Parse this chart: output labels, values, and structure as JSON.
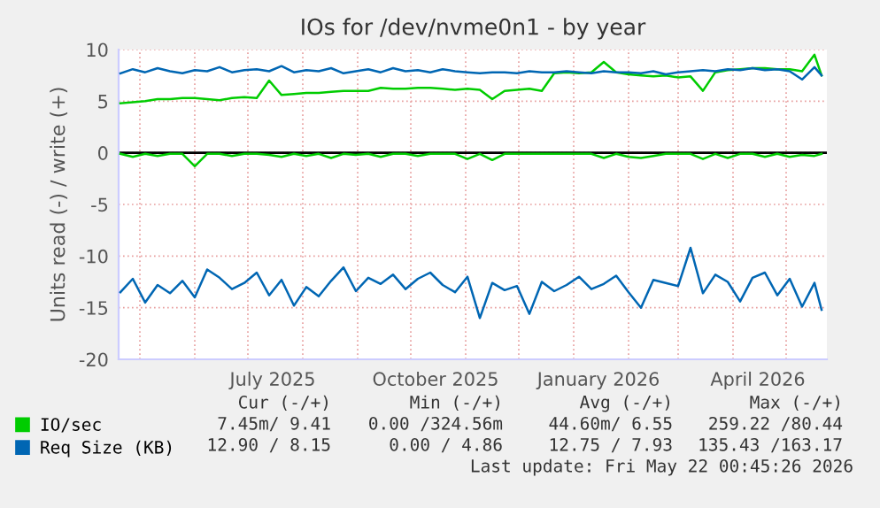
{
  "chart_data": {
    "type": "line",
    "title": "IOs for /dev/nvme0n1 - by year",
    "ylabel": "Units read (-) / write (+)",
    "x": [
      "2025-04-20",
      "2025-04-27",
      "2025-05-04",
      "2025-05-11",
      "2025-05-18",
      "2025-05-25",
      "2025-06-01",
      "2025-06-08",
      "2025-06-15",
      "2025-06-22",
      "2025-06-29",
      "2025-07-06",
      "2025-07-13",
      "2025-07-20",
      "2025-07-27",
      "2025-08-03",
      "2025-08-10",
      "2025-08-17",
      "2025-08-24",
      "2025-08-31",
      "2025-09-07",
      "2025-09-14",
      "2025-09-21",
      "2025-09-28",
      "2025-10-05",
      "2025-10-12",
      "2025-10-19",
      "2025-10-26",
      "2025-11-02",
      "2025-11-09",
      "2025-11-16",
      "2025-11-23",
      "2025-11-30",
      "2025-12-07",
      "2025-12-14",
      "2025-12-21",
      "2025-12-28",
      "2026-01-04",
      "2026-01-11",
      "2026-01-18",
      "2026-01-25",
      "2026-02-01",
      "2026-02-08",
      "2026-02-15",
      "2026-02-22",
      "2026-03-01",
      "2026-03-08",
      "2026-03-15",
      "2026-03-22",
      "2026-03-29",
      "2026-04-05",
      "2026-04-12",
      "2026-04-19",
      "2026-04-26",
      "2026-05-03",
      "2026-05-10",
      "2026-05-17",
      "2026-05-21"
    ],
    "series": [
      {
        "name": "IO/sec",
        "color": "#00cc00",
        "values": [
          4.8,
          4.9,
          5.0,
          5.2,
          5.2,
          5.3,
          5.3,
          5.2,
          5.1,
          5.3,
          5.4,
          5.3,
          7.0,
          5.6,
          5.7,
          5.8,
          5.8,
          5.9,
          6.0,
          6.0,
          6.0,
          6.3,
          6.2,
          6.2,
          6.3,
          6.3,
          6.2,
          6.1,
          6.2,
          6.1,
          5.2,
          6.0,
          6.1,
          6.2,
          6.0,
          7.7,
          7.8,
          7.7,
          7.8,
          8.8,
          7.8,
          7.6,
          7.5,
          7.4,
          7.5,
          7.3,
          7.4,
          6.0,
          7.8,
          8.0,
          8.1,
          8.2,
          8.2,
          8.1,
          8.1,
          7.9,
          9.5,
          7.5
        ]
      },
      {
        "color": "#00cc00",
        "values": [
          -0.1,
          -0.4,
          -0.1,
          -0.3,
          -0.1,
          -0.1,
          -1.3,
          -0.1,
          -0.1,
          -0.3,
          -0.1,
          -0.1,
          -0.2,
          -0.4,
          -0.1,
          -0.3,
          -0.1,
          -0.5,
          -0.1,
          -0.2,
          -0.1,
          -0.4,
          -0.1,
          -0.1,
          -0.3,
          -0.1,
          -0.1,
          -0.1,
          -0.6,
          -0.1,
          -0.7,
          -0.1,
          -0.1,
          -0.1,
          -0.1,
          -0.1,
          -0.1,
          -0.1,
          -0.1,
          -0.5,
          -0.1,
          -0.4,
          -0.5,
          -0.3,
          -0.1,
          -0.1,
          -0.1,
          -0.6,
          -0.1,
          -0.5,
          -0.1,
          -0.1,
          -0.4,
          -0.1,
          -0.4,
          -0.2,
          -0.3,
          -0.1
        ]
      },
      {
        "name": "Req Size (KB)",
        "color": "#0066b3",
        "values": [
          7.7,
          8.1,
          7.8,
          8.2,
          7.9,
          7.7,
          8.0,
          7.9,
          8.3,
          7.8,
          8.0,
          8.1,
          7.9,
          8.4,
          7.8,
          8.0,
          7.9,
          8.2,
          7.7,
          7.9,
          8.1,
          7.8,
          8.2,
          7.9,
          8.0,
          7.8,
          8.1,
          7.9,
          7.8,
          7.7,
          7.8,
          7.8,
          7.7,
          7.9,
          7.8,
          7.8,
          7.9,
          7.8,
          7.7,
          7.9,
          7.8,
          7.8,
          7.7,
          7.9,
          7.6,
          7.8,
          7.9,
          8.0,
          7.9,
          8.1,
          8.0,
          8.2,
          8.0,
          8.1,
          7.9,
          7.1,
          8.3,
          7.5
        ]
      },
      {
        "color": "#0066b3",
        "values": [
          -13.5,
          -12.2,
          -14.5,
          -12.8,
          -13.6,
          -12.4,
          -14.0,
          -11.3,
          -12.1,
          -13.2,
          -12.6,
          -11.6,
          -13.8,
          -12.3,
          -14.8,
          -13.0,
          -13.9,
          -12.4,
          -11.1,
          -13.4,
          -12.1,
          -12.7,
          -11.8,
          -13.2,
          -12.2,
          -11.6,
          -12.8,
          -13.5,
          -12.0,
          -16.0,
          -12.6,
          -13.3,
          -12.9,
          -15.6,
          -12.5,
          -13.4,
          -12.8,
          -12.0,
          -13.2,
          -12.7,
          -11.9,
          -13.5,
          -15.0,
          -12.3,
          -12.6,
          -12.9,
          -9.2,
          -13.6,
          -11.8,
          -12.5,
          -14.4,
          -12.1,
          -11.6,
          -13.8,
          -12.2,
          -14.9,
          -12.6,
          -15.2
        ]
      }
    ],
    "xlim": [
      "2025-04-19",
      "2026-05-24"
    ],
    "xticks": [
      {
        "value": "2025-07-15",
        "label": "July 2025"
      },
      {
        "value": "2025-10-15",
        "label": "October 2025"
      },
      {
        "value": "2026-01-15",
        "label": "January 2026"
      },
      {
        "value": "2026-04-15",
        "label": "April 2026"
      }
    ],
    "ylim": [
      -20,
      10
    ],
    "yticks": [
      -20,
      -15,
      -10,
      -5,
      0,
      5,
      10
    ],
    "ref_lines": [
      {
        "axis": "y",
        "value": 0,
        "color": "#000000"
      }
    ],
    "grid": true,
    "legend": "bottom left",
    "annotations": [
      "Cur (-/+)",
      "Min (-/+)",
      "Avg (-/+)",
      "Max (-/+)",
      "7.45m/ 9.41",
      "0.00 /324.56m",
      "44.60m/ 6.55",
      "259.22 /80.44",
      "12.90 / 8.15",
      "0.00 / 4.86",
      "12.75 / 7.93",
      "135.43 /163.17",
      "Last update: Fri May 22 00:45:26 2026"
    ]
  }
}
